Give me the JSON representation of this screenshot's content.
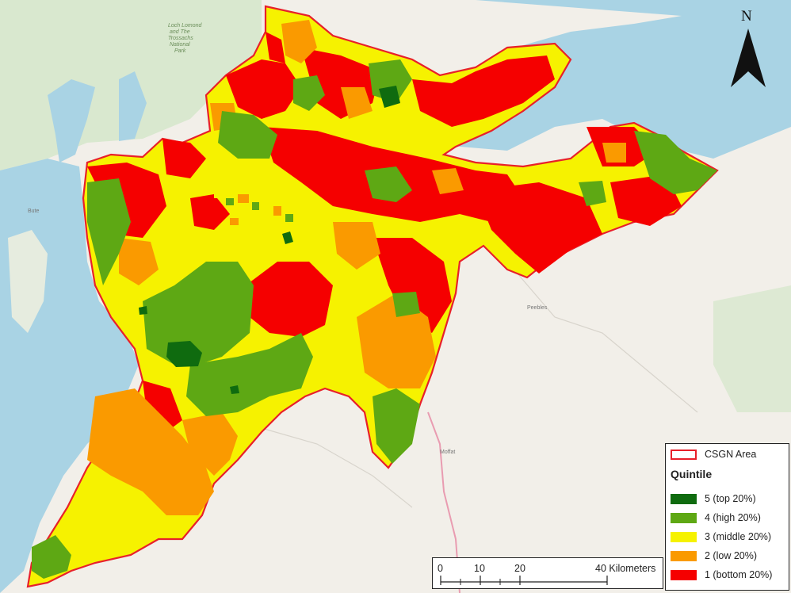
{
  "map": {
    "north_label": "N",
    "basemap_labels": {
      "park_line1": "Loch Lomond",
      "park_line2": "and The",
      "park_line3": "Trossachs",
      "park_line4": "National",
      "park_line5": "Park",
      "town_bute": "Bute",
      "town_peebles": "Peebles",
      "town_moffat": "Moffat"
    },
    "colors": {
      "water": "#a9d3e4",
      "land": "#f2efe9",
      "green_land": "#cfe3c0",
      "boundary": "#e8202a",
      "quintile_5": "#0f6b0f",
      "quintile_4": "#5ea814",
      "quintile_3": "#f6f200",
      "quintile_2": "#fa9a00",
      "quintile_1": "#f50000"
    }
  },
  "legend": {
    "boundary_label": "CSGN Area",
    "title": "Quintile",
    "items": [
      {
        "label": "5 (top 20%)",
        "color": "#0f6b0f"
      },
      {
        "label": "4 (high 20%)",
        "color": "#5ea814"
      },
      {
        "label": "3 (middle 20%)",
        "color": "#f6f200"
      },
      {
        "label": "2 (low 20%)",
        "color": "#fa9a00"
      },
      {
        "label": "1 (bottom 20%)",
        "color": "#f50000"
      }
    ]
  },
  "scalebar": {
    "ticks": [
      "0",
      "10",
      "20",
      "40 Kilometers"
    ]
  }
}
